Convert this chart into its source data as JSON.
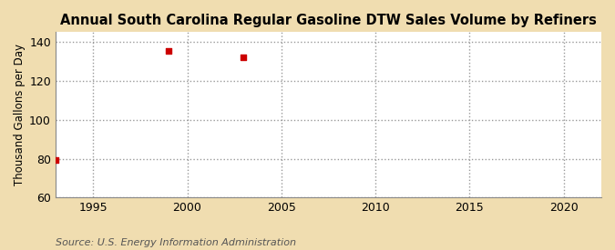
{
  "title": "Annual South Carolina Regular Gasoline DTW Sales Volume by Refiners",
  "ylabel": "Thousand Gallons per Day",
  "source": "Source: U.S. Energy Information Administration",
  "figure_background_color": "#f0ddb0",
  "plot_background_color": "#ffffff",
  "data_points": [
    {
      "year": 1993,
      "value": 79.3
    },
    {
      "year": 1999,
      "value": 135.5
    },
    {
      "year": 2003,
      "value": 132.0
    }
  ],
  "marker_color": "#cc0000",
  "marker_style": "s",
  "marker_size": 5,
  "xlim": [
    1993,
    2022
  ],
  "ylim": [
    60,
    145
  ],
  "yticks": [
    60,
    80,
    100,
    120,
    140
  ],
  "xticks": [
    1995,
    2000,
    2005,
    2010,
    2015,
    2020
  ],
  "grid_color": "#999999",
  "grid_linestyle": ":",
  "grid_linewidth": 1.0,
  "title_fontsize": 10.5,
  "ylabel_fontsize": 8.5,
  "tick_fontsize": 9,
  "source_fontsize": 8
}
